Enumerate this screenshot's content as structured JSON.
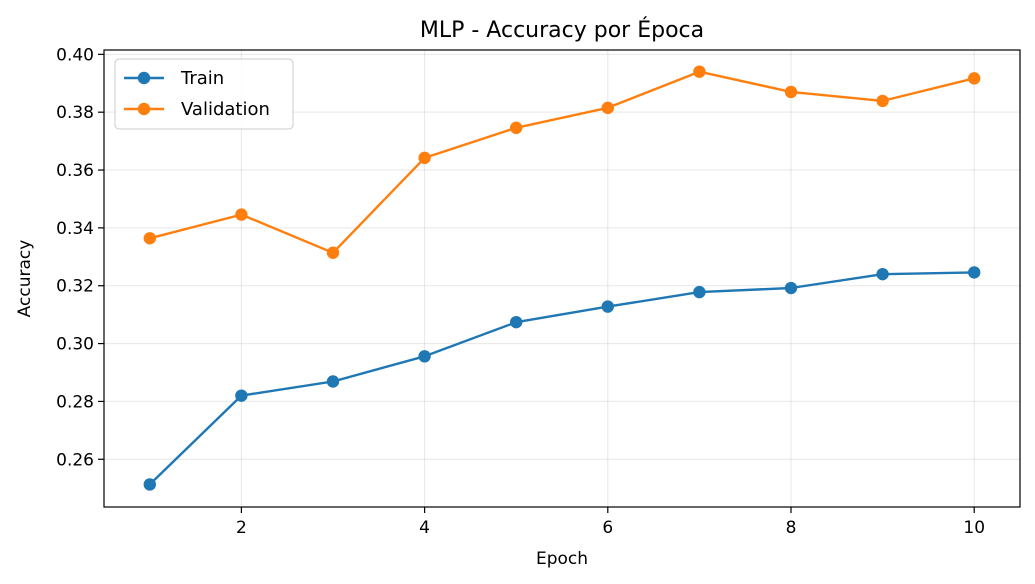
{
  "chart_data": {
    "type": "line",
    "title": "MLP - Accuracy por Época",
    "xlabel": "Epoch",
    "ylabel": "Accuracy",
    "x": [
      1,
      2,
      3,
      4,
      5,
      6,
      7,
      8,
      9,
      10
    ],
    "xlim": [
      0.5,
      10.5
    ],
    "ylim": [
      0.2435,
      0.4015
    ],
    "xticks": [
      2,
      4,
      6,
      8,
      10
    ],
    "xtick_labels": [
      "2",
      "4",
      "6",
      "8",
      "10"
    ],
    "yticks": [
      0.26,
      0.28,
      0.3,
      0.32,
      0.34,
      0.36,
      0.38,
      0.4
    ],
    "ytick_labels": [
      "0.26",
      "0.28",
      "0.30",
      "0.32",
      "0.34",
      "0.36",
      "0.38",
      "0.40"
    ],
    "grid": true,
    "legend_position": "top-left",
    "series": [
      {
        "name": "Train",
        "color": "#1f77b4",
        "marker": "circle",
        "values": [
          0.2513,
          0.282,
          0.2869,
          0.2956,
          0.3074,
          0.3128,
          0.3178,
          0.3192,
          0.324,
          0.3246
        ]
      },
      {
        "name": "Validation",
        "color": "#ff7f0e",
        "marker": "circle",
        "values": [
          0.3364,
          0.3446,
          0.3314,
          0.3642,
          0.3746,
          0.3815,
          0.394,
          0.387,
          0.3839,
          0.3917
        ]
      }
    ]
  }
}
